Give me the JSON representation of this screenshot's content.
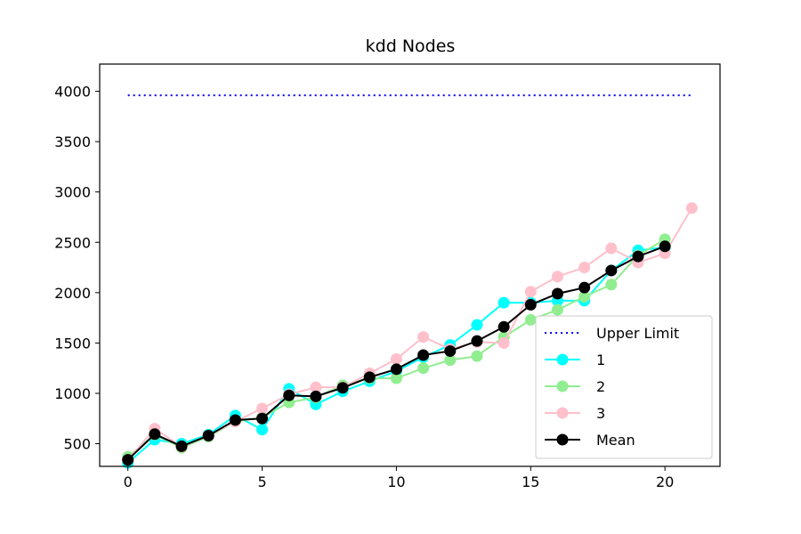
{
  "chart_data": {
    "type": "line",
    "title": "kdd Nodes",
    "xlabel": "",
    "ylabel": "",
    "xlim": [
      -1.05,
      22.05
    ],
    "ylim": [
      275,
      4270
    ],
    "xticks": [
      0,
      5,
      10,
      15,
      20
    ],
    "yticks": [
      500,
      1000,
      1500,
      2000,
      2500,
      3000,
      3500,
      4000
    ],
    "grid": false,
    "legend_position": "lower-right",
    "upper_limit": {
      "name": "Upper Limit",
      "color": "#0000ff",
      "style": "dotted",
      "x": [
        0,
        21
      ],
      "y": [
        3960,
        3960
      ]
    },
    "series": [
      {
        "name": "1",
        "color": "#00ffff",
        "x": [
          0,
          1,
          2,
          3,
          4,
          5,
          6,
          7,
          8,
          9,
          10,
          11,
          12,
          13,
          14,
          15,
          16,
          17,
          18,
          19,
          20
        ],
        "values": [
          310,
          540,
          500,
          590,
          780,
          640,
          1045,
          890,
          1020,
          1120,
          1220,
          1360,
          1480,
          1680,
          1900,
          1900,
          1920,
          1920,
          2220,
          2420,
          2450
        ]
      },
      {
        "name": "2",
        "color": "#90ee90",
        "x": [
          0,
          1,
          2,
          3,
          4,
          5,
          6,
          7,
          8,
          9,
          10,
          11,
          12,
          13,
          14,
          15,
          16,
          17,
          18,
          19,
          20
        ],
        "values": [
          370,
          590,
          460,
          570,
          720,
          760,
          910,
          960,
          1080,
          1150,
          1150,
          1250,
          1330,
          1370,
          1560,
          1730,
          1830,
          1960,
          2080,
          2370,
          2530
        ]
      },
      {
        "name": "3",
        "color": "#ffc0cb",
        "x": [
          0,
          1,
          2,
          3,
          4,
          5,
          6,
          7,
          8,
          9,
          10,
          11,
          12,
          13,
          14,
          15,
          16,
          17,
          18,
          19,
          20,
          21
        ],
        "values": [
          340,
          650,
          470,
          580,
          720,
          850,
          990,
          1060,
          1060,
          1200,
          1340,
          1560,
          1440,
          1510,
          1500,
          2010,
          2160,
          2250,
          2440,
          2300,
          2390,
          2840
        ]
      },
      {
        "name": "Mean",
        "color": "#000000",
        "x": [
          0,
          1,
          2,
          3,
          4,
          5,
          6,
          7,
          8,
          9,
          10,
          11,
          12,
          13,
          14,
          15,
          16,
          17,
          18,
          19,
          20
        ],
        "values": [
          340,
          595,
          475,
          580,
          735,
          750,
          980,
          970,
          1055,
          1160,
          1240,
          1380,
          1420,
          1520,
          1660,
          1880,
          1990,
          2050,
          2220,
          2360,
          2460
        ]
      }
    ]
  }
}
